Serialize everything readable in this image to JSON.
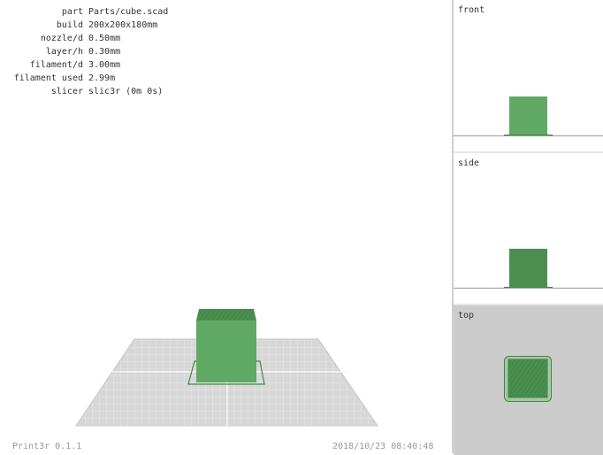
{
  "info": [
    {
      "label": "part",
      "value": "Parts/cube.scad"
    },
    {
      "label": "build",
      "value": "200x200x180mm"
    },
    {
      "label": "nozzle/d",
      "value": "0.50mm"
    },
    {
      "label": "layer/h",
      "value": "0.30mm"
    },
    {
      "label": "filament/d",
      "value": "3.00mm"
    },
    {
      "label": "filament used",
      "value": "2.99m"
    },
    {
      "label": "slicer",
      "value": "slic3r (0m 0s)"
    }
  ],
  "footer": {
    "version": "Print3r 0.1.1",
    "timestamp": "2018/10/23 08:40:48"
  },
  "views": {
    "front": "front",
    "side": "side",
    "top": "top"
  },
  "colors": {
    "model": "#5fa965",
    "model_dark": "#4a8f4f",
    "bed": "#d7d7d7",
    "grid": "#eeeeee"
  }
}
